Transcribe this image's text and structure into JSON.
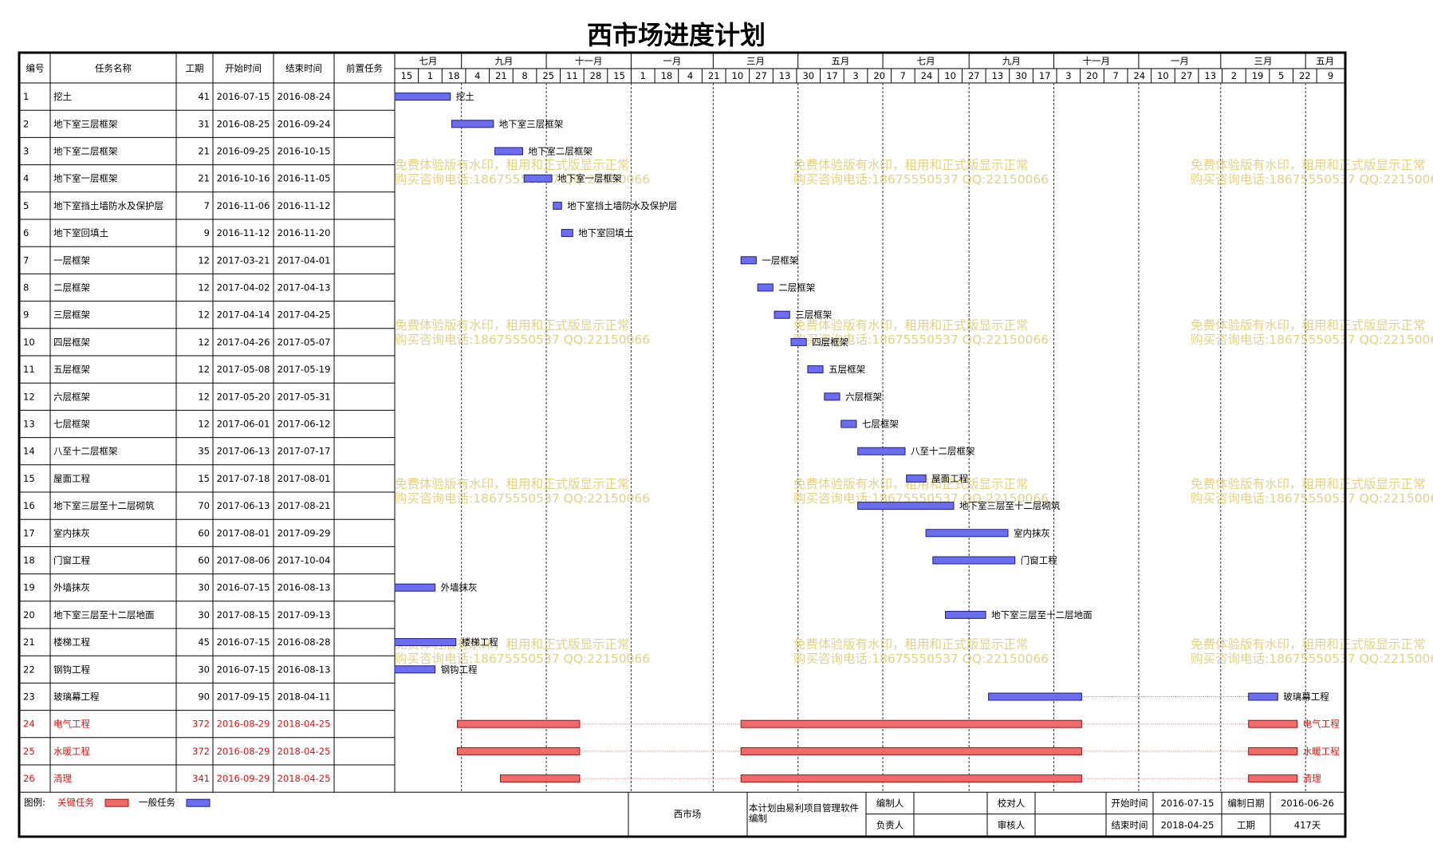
{
  "title": "西市场进度计划",
  "columns": [
    "编号",
    "任务名称",
    "工期",
    "开始时间",
    "结束时间",
    "前置任务"
  ],
  "timeline": {
    "range": [
      "2016-07-15",
      "2018-05-29"
    ],
    "months": [
      {
        "label": "七月",
        "start": "2016-07-01"
      },
      {
        "label": "九月",
        "start": "2016-09-01"
      },
      {
        "label": "十一月",
        "start": "2016-11-01"
      },
      {
        "label": "一月",
        "start": "2017-01-01"
      },
      {
        "label": "三月",
        "start": "2017-03-01"
      },
      {
        "label": "五月",
        "start": "2017-05-01"
      },
      {
        "label": "七月",
        "start": "2017-07-01"
      },
      {
        "label": "九月",
        "start": "2017-09-01"
      },
      {
        "label": "十一月",
        "start": "2017-11-01"
      },
      {
        "label": "一月",
        "start": "2018-01-01"
      },
      {
        "label": "三月",
        "start": "2018-03-01"
      },
      {
        "label": "五月",
        "start": "2018-05-01"
      }
    ],
    "days": [
      {
        "label": "15",
        "date": "2016-07-15"
      },
      {
        "label": "1",
        "date": "2016-08-01"
      },
      {
        "label": "18",
        "date": "2016-08-18"
      },
      {
        "label": "4",
        "date": "2016-09-04"
      },
      {
        "label": "21",
        "date": "2016-09-21"
      },
      {
        "label": "8",
        "date": "2016-10-08"
      },
      {
        "label": "25",
        "date": "2016-10-25"
      },
      {
        "label": "11",
        "date": "2016-11-11"
      },
      {
        "label": "28",
        "date": "2016-11-28"
      },
      {
        "label": "15",
        "date": "2016-12-15"
      },
      {
        "label": "1",
        "date": "2017-01-01"
      },
      {
        "label": "18",
        "date": "2017-01-18"
      },
      {
        "label": "4",
        "date": "2017-02-04"
      },
      {
        "label": "21",
        "date": "2017-02-21"
      },
      {
        "label": "10",
        "date": "2017-03-10"
      },
      {
        "label": "27",
        "date": "2017-03-27"
      },
      {
        "label": "13",
        "date": "2017-04-13"
      },
      {
        "label": "30",
        "date": "2017-04-30"
      },
      {
        "label": "17",
        "date": "2017-05-17"
      },
      {
        "label": "3",
        "date": "2017-06-03"
      },
      {
        "label": "20",
        "date": "2017-06-20"
      },
      {
        "label": "7",
        "date": "2017-07-07"
      },
      {
        "label": "24",
        "date": "2017-07-24"
      },
      {
        "label": "10",
        "date": "2017-08-10"
      },
      {
        "label": "27",
        "date": "2017-08-27"
      },
      {
        "label": "13",
        "date": "2017-09-13"
      },
      {
        "label": "30",
        "date": "2017-09-30"
      },
      {
        "label": "17",
        "date": "2017-10-17"
      },
      {
        "label": "3",
        "date": "2017-11-03"
      },
      {
        "label": "20",
        "date": "2017-11-20"
      },
      {
        "label": "7",
        "date": "2017-12-07"
      },
      {
        "label": "24",
        "date": "2017-12-24"
      },
      {
        "label": "10",
        "date": "2018-01-10"
      },
      {
        "label": "27",
        "date": "2018-01-27"
      },
      {
        "label": "13",
        "date": "2018-02-13"
      },
      {
        "label": "2",
        "date": "2018-03-02"
      },
      {
        "label": "19",
        "date": "2018-03-19"
      },
      {
        "label": "5",
        "date": "2018-04-05"
      },
      {
        "label": "22",
        "date": "2018-04-22"
      },
      {
        "label": "9",
        "date": "2018-05-09"
      }
    ]
  },
  "colors": {
    "critical": "#f06a6a",
    "normal": "#6d6df0"
  },
  "tasks": [
    {
      "id": 1,
      "name": "挖土",
      "duration": 41,
      "start": "2016-07-15",
      "end": "2016-08-24",
      "critical": false
    },
    {
      "id": 2,
      "name": "地下室三层框架",
      "duration": 31,
      "start": "2016-08-25",
      "end": "2016-09-24",
      "critical": false
    },
    {
      "id": 3,
      "name": "地下室二层框架",
      "duration": 21,
      "start": "2016-09-25",
      "end": "2016-10-15",
      "critical": false
    },
    {
      "id": 4,
      "name": "地下室一层框架",
      "duration": 21,
      "start": "2016-10-16",
      "end": "2016-11-05",
      "critical": false
    },
    {
      "id": 5,
      "name": "地下室挡土墙防水及保护层",
      "duration": 7,
      "start": "2016-11-06",
      "end": "2016-11-12",
      "critical": false
    },
    {
      "id": 6,
      "name": "地下室回填土",
      "duration": 9,
      "start": "2016-11-12",
      "end": "2016-11-20",
      "critical": false
    },
    {
      "id": 7,
      "name": "一层框架",
      "duration": 12,
      "start": "2017-03-21",
      "end": "2017-04-01",
      "critical": false
    },
    {
      "id": 8,
      "name": "二层框架",
      "duration": 12,
      "start": "2017-04-02",
      "end": "2017-04-13",
      "critical": false
    },
    {
      "id": 9,
      "name": "三层框架",
      "duration": 12,
      "start": "2017-04-14",
      "end": "2017-04-25",
      "critical": false
    },
    {
      "id": 10,
      "name": "四层框架",
      "duration": 12,
      "start": "2017-04-26",
      "end": "2017-05-07",
      "critical": false
    },
    {
      "id": 11,
      "name": "五层框架",
      "duration": 12,
      "start": "2017-05-08",
      "end": "2017-05-19",
      "critical": false
    },
    {
      "id": 12,
      "name": "六层框架",
      "duration": 12,
      "start": "2017-05-20",
      "end": "2017-05-31",
      "critical": false
    },
    {
      "id": 13,
      "name": "七层框架",
      "duration": 12,
      "start": "2017-06-01",
      "end": "2017-06-12",
      "critical": false
    },
    {
      "id": 14,
      "name": "八至十二层框架",
      "duration": 35,
      "start": "2017-06-13",
      "end": "2017-07-17",
      "critical": false
    },
    {
      "id": 15,
      "name": "屋面工程",
      "duration": 15,
      "start": "2017-07-18",
      "end": "2017-08-01",
      "critical": false
    },
    {
      "id": 16,
      "name": "地下室三层至十二层砌筑",
      "duration": 70,
      "start": "2017-06-13",
      "end": "2017-08-21",
      "critical": false
    },
    {
      "id": 17,
      "name": "室内抹灰",
      "duration": 60,
      "start": "2017-08-01",
      "end": "2017-09-29",
      "critical": false
    },
    {
      "id": 18,
      "name": "门窗工程",
      "duration": 60,
      "start": "2017-08-06",
      "end": "2017-10-04",
      "critical": false
    },
    {
      "id": 19,
      "name": "外墙抹灰",
      "duration": 30,
      "start": "2016-07-15",
      "end": "2016-08-13",
      "critical": false
    },
    {
      "id": 20,
      "name": "地下室三层至十二层地面",
      "duration": 30,
      "start": "2017-08-15",
      "end": "2017-09-13",
      "critical": false
    },
    {
      "id": 21,
      "name": "楼梯工程",
      "duration": 45,
      "start": "2016-07-15",
      "end": "2016-08-28",
      "critical": false
    },
    {
      "id": 22,
      "name": "钢钩工程",
      "duration": 30,
      "start": "2016-07-15",
      "end": "2016-08-13",
      "critical": false
    },
    {
      "id": 23,
      "name": "玻璃幕工程",
      "duration": 90,
      "start": "2017-09-15",
      "end": "2018-04-11",
      "critical": false,
      "breaks": [
        [
          "2017-11-21",
          "2018-03-21"
        ]
      ]
    },
    {
      "id": 24,
      "name": "电气工程",
      "duration": 372,
      "start": "2016-08-29",
      "end": "2018-04-25",
      "critical": true,
      "breaks": [
        [
          "2016-11-25",
          "2017-03-21"
        ],
        [
          "2017-11-21",
          "2018-03-21"
        ]
      ]
    },
    {
      "id": 25,
      "name": "水暖工程",
      "duration": 372,
      "start": "2016-08-29",
      "end": "2018-04-25",
      "critical": true,
      "breaks": [
        [
          "2016-11-25",
          "2017-03-21"
        ],
        [
          "2017-11-21",
          "2018-03-21"
        ]
      ]
    },
    {
      "id": 26,
      "name": "清理",
      "duration": 341,
      "start": "2016-09-29",
      "end": "2018-04-25",
      "critical": true,
      "breaks": [
        [
          "2016-11-25",
          "2017-03-21"
        ],
        [
          "2017-11-21",
          "2018-03-21"
        ]
      ]
    }
  ],
  "watermark": [
    "免费体验版有水印，租用和正式版显示正常",
    "购买咨询电话:18675550537 QQ:22150066"
  ],
  "legend": {
    "label": "图例:",
    "critical": "关键任务",
    "normal": "一般任务"
  },
  "footer": {
    "project": "西市场",
    "note": "本计划由易利项目管理软件编制",
    "compiler_label": "编制人",
    "checker_label": "校对人",
    "start_label": "开始时间",
    "start": "2016-07-15",
    "date_label": "编制日期",
    "date": "2016-06-26",
    "owner_label": "负责人",
    "auditor_label": "审核人",
    "end_label": "结束时间",
    "end": "2018-04-25",
    "duration_label": "工期",
    "duration": "417天"
  }
}
